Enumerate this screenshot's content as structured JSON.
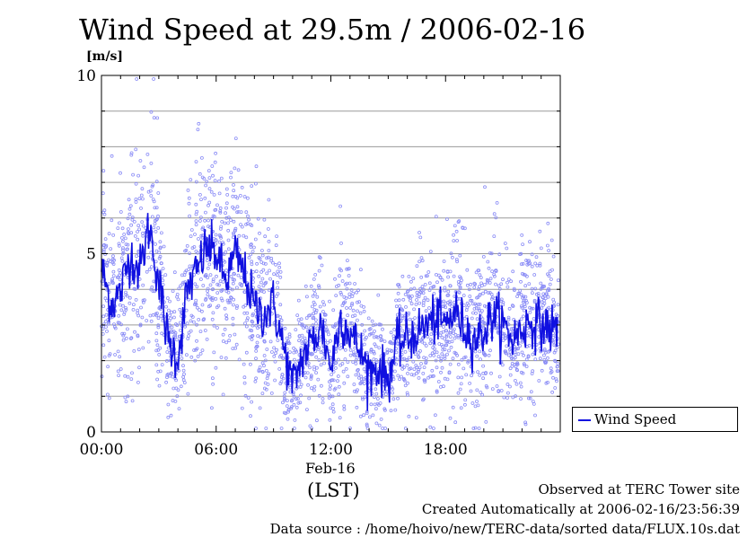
{
  "chart_data": {
    "type": "scatter",
    "title": "Wind Speed at 29.5m / 2006-02-16",
    "ylabel": "[m/s]",
    "ylim": [
      0,
      10
    ],
    "xlim_hours": [
      0,
      24
    ],
    "xticks": [
      "00:00",
      "06:00",
      "12:00",
      "18:00"
    ],
    "yticks": [
      "0",
      "5",
      "10"
    ],
    "x_sublabel": "Feb-16",
    "x_unit": "(LST)",
    "grid": true,
    "legend_position": "lower-right-outside",
    "colors": {
      "line": "#1010e0",
      "points": "#8a8cf6"
    },
    "series": [
      {
        "name": "Wind Speed",
        "x_hours": [
          0,
          0.5,
          1,
          1.5,
          2,
          2.5,
          3,
          3.5,
          4,
          4.5,
          5,
          5.5,
          6,
          6.5,
          7,
          7.5,
          8,
          8.5,
          9,
          9.5,
          10,
          10.5,
          11,
          11.5,
          12,
          12.5,
          13,
          13.5,
          14,
          14.5,
          15,
          15.5,
          16,
          16.5,
          17,
          17.5,
          18,
          18.5,
          19,
          19.5,
          20,
          20.5,
          21,
          21.5,
          22,
          22.5,
          23,
          23.5
        ],
        "values": [
          4.6,
          3.6,
          3.9,
          5.0,
          4.5,
          5.8,
          4.2,
          2.5,
          2.1,
          4.0,
          4.5,
          5.2,
          5.0,
          4.2,
          5.0,
          4.4,
          3.5,
          3.3,
          3.6,
          2.4,
          1.3,
          2.1,
          2.5,
          3.0,
          1.8,
          3.2,
          2.8,
          2.3,
          1.7,
          1.8,
          1.5,
          2.5,
          2.6,
          2.8,
          3.0,
          3.2,
          3.0,
          3.4,
          2.9,
          2.6,
          2.8,
          3.3,
          3.0,
          2.6,
          2.9,
          3.1,
          3.0,
          2.9
        ]
      }
    ]
  },
  "footer": {
    "line1": "Observed at TERC Tower site",
    "line2": "Created Automatically at 2006-02-16/23:56:39",
    "line3": "Data source : /home/hoivo/new/TERC-data/sorted  data/FLUX.10s.dat"
  }
}
